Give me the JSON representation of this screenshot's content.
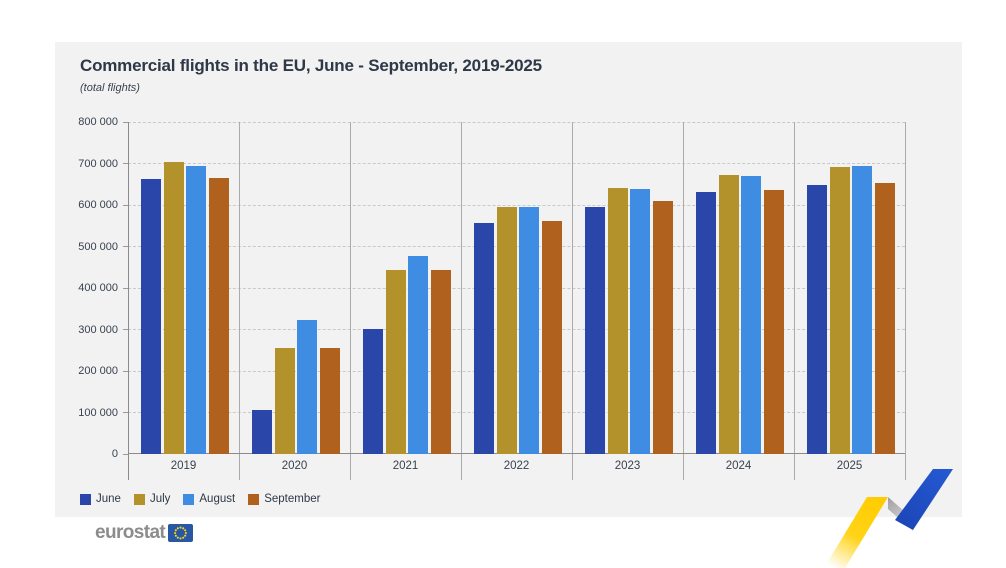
{
  "chart_data": {
    "type": "bar",
    "title": "Commercial flights in the EU, June - September, 2019-2025",
    "subtitle": "(total flights)",
    "categories": [
      "2019",
      "2020",
      "2021",
      "2022",
      "2023",
      "2024",
      "2025"
    ],
    "series": [
      {
        "name": "June",
        "color": "#2a46a8",
        "values": [
          662000,
          105000,
          302000,
          556000,
          594000,
          631000,
          648000
        ]
      },
      {
        "name": "July",
        "color": "#b4922b",
        "values": [
          703000,
          256000,
          443000,
          595000,
          640000,
          672000,
          691000
        ]
      },
      {
        "name": "August",
        "color": "#3e8de3",
        "values": [
          694000,
          324000,
          478000,
          596000,
          638000,
          670000,
          693000
        ]
      },
      {
        "name": "September",
        "color": "#b0611d",
        "values": [
          664000,
          256000,
          443000,
          561000,
          609000,
          636000,
          654000
        ]
      }
    ],
    "ylim": [
      0,
      800000
    ],
    "ytick_step": 100000,
    "ytick_labels": [
      "0",
      "100 000",
      "200 000",
      "300 000",
      "400 000",
      "500 000",
      "600 000",
      "700 000",
      "800 000"
    ],
    "grid": "horizontal-dashed",
    "legend_position": "bottom-left"
  },
  "logo": {
    "text": "eurostat"
  },
  "colors": {
    "card_background": "#f2f2f2",
    "title_text": "#2e3847",
    "axis_line": "#8b8b8b",
    "gridline": "#c9c9c9",
    "separator": "#ababab",
    "eu_flag_blue": "#2857a4",
    "eu_flag_stars": "#ffd617",
    "swoosh_yellow": "#ffcc00",
    "swoosh_gray": "#9e9e9e",
    "swoosh_blue": "#2151c4"
  }
}
